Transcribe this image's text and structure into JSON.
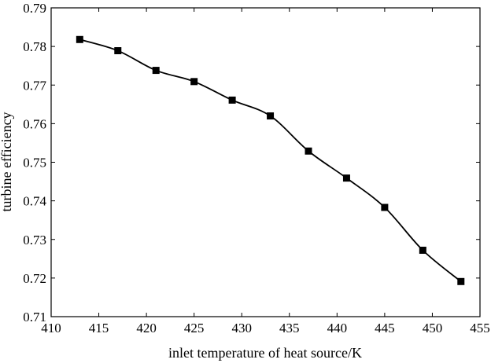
{
  "chart_data": {
    "type": "line",
    "xlabel": "inlet temperature of heat source/K",
    "ylabel": "turbine efficiency",
    "xlim": [
      410,
      455
    ],
    "ylim": [
      0.71,
      0.79
    ],
    "xticks": [
      "410",
      "415",
      "420",
      "425",
      "430",
      "435",
      "440",
      "445",
      "450",
      "455"
    ],
    "yticks": [
      "0.71",
      "0.72",
      "0.73",
      "0.74",
      "0.75",
      "0.76",
      "0.77",
      "0.78",
      "0.79"
    ],
    "grid": false,
    "marker": "square",
    "series": [
      {
        "x": [
          413,
          417,
          421,
          425,
          429,
          433,
          437,
          441,
          445,
          449,
          453
        ],
        "y": [
          0.7818,
          0.7789,
          0.7738,
          0.7709,
          0.7661,
          0.762,
          0.7529,
          0.7459,
          0.7383,
          0.7272,
          0.7191
        ],
        "color": "#000000"
      }
    ]
  }
}
